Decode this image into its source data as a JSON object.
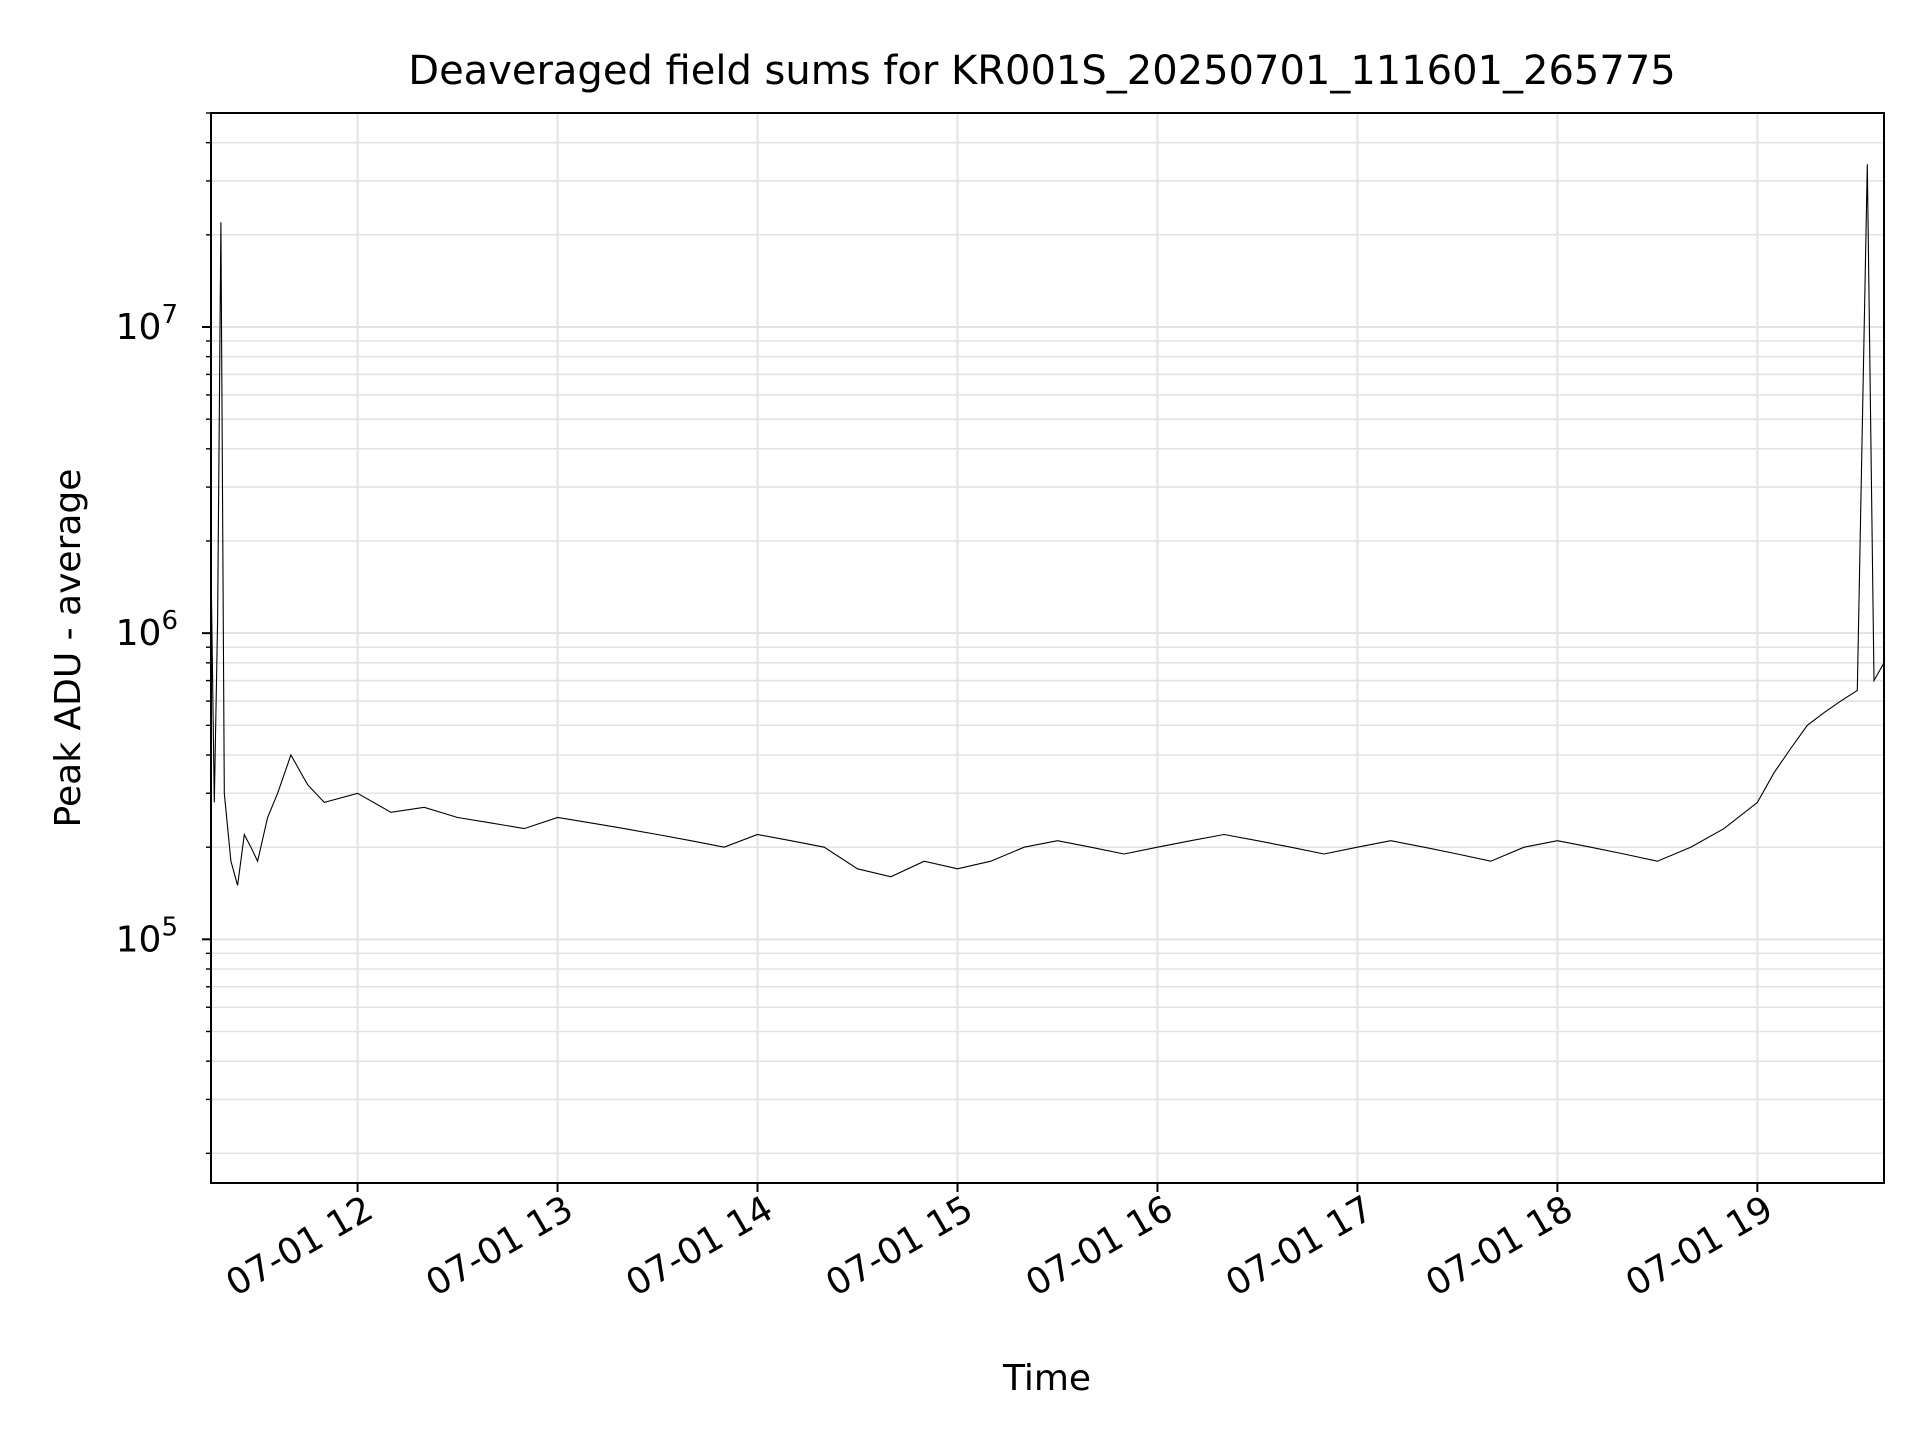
{
  "chart_data": {
    "type": "line",
    "title": "Deaveraged field sums for KR001S_20250701_111601_265775",
    "xlabel": "Time",
    "ylabel": "Peak ADU - average",
    "yscale": "log",
    "xlim": [
      "2025-07-01 11:16:01",
      "2025-07-01 19:38:00"
    ],
    "ylim": [
      16000,
      50000000
    ],
    "x_ticks": [
      {
        "value": "2025-07-01 12:00",
        "label": "07-01 12"
      },
      {
        "value": "2025-07-01 13:00",
        "label": "07-01 13"
      },
      {
        "value": "2025-07-01 14:00",
        "label": "07-01 14"
      },
      {
        "value": "2025-07-01 15:00",
        "label": "07-01 15"
      },
      {
        "value": "2025-07-01 16:00",
        "label": "07-01 16"
      },
      {
        "value": "2025-07-01 17:00",
        "label": "07-01 17"
      },
      {
        "value": "2025-07-01 18:00",
        "label": "07-01 18"
      },
      {
        "value": "2025-07-01 19:00",
        "label": "07-01 19"
      }
    ],
    "y_ticks": [
      {
        "value": 100000,
        "base": "10",
        "exp": "5"
      },
      {
        "value": 1000000,
        "base": "10",
        "exp": "6"
      },
      {
        "value": 10000000,
        "base": "10",
        "exp": "7"
      }
    ],
    "grid": true,
    "line_color": "#000000",
    "series": [
      {
        "x": [
          "2025-07-01 11:16",
          "2025-07-01 11:17",
          "2025-07-01 11:18",
          "2025-07-01 11:19",
          "2025-07-01 11:20",
          "2025-07-01 11:22",
          "2025-07-01 11:24",
          "2025-07-01 11:26",
          "2025-07-01 11:28",
          "2025-07-01 11:30",
          "2025-07-01 11:33",
          "2025-07-01 11:36",
          "2025-07-01 11:40",
          "2025-07-01 11:45",
          "2025-07-01 11:50",
          "2025-07-01 12:00",
          "2025-07-01 12:10",
          "2025-07-01 12:20",
          "2025-07-01 12:30",
          "2025-07-01 12:40",
          "2025-07-01 12:50",
          "2025-07-01 13:00",
          "2025-07-01 13:10",
          "2025-07-01 13:20",
          "2025-07-01 13:30",
          "2025-07-01 13:40",
          "2025-07-01 13:50",
          "2025-07-01 14:00",
          "2025-07-01 14:10",
          "2025-07-01 14:20",
          "2025-07-01 14:30",
          "2025-07-01 14:40",
          "2025-07-01 14:50",
          "2025-07-01 15:00",
          "2025-07-01 15:10",
          "2025-07-01 15:20",
          "2025-07-01 15:30",
          "2025-07-01 15:40",
          "2025-07-01 15:50",
          "2025-07-01 16:00",
          "2025-07-01 16:10",
          "2025-07-01 16:20",
          "2025-07-01 16:30",
          "2025-07-01 16:40",
          "2025-07-01 16:50",
          "2025-07-01 17:00",
          "2025-07-01 17:10",
          "2025-07-01 17:20",
          "2025-07-01 17:30",
          "2025-07-01 17:40",
          "2025-07-01 17:50",
          "2025-07-01 18:00",
          "2025-07-01 18:10",
          "2025-07-01 18:20",
          "2025-07-01 18:30",
          "2025-07-01 18:40",
          "2025-07-01 18:50",
          "2025-07-01 19:00",
          "2025-07-01 19:05",
          "2025-07-01 19:10",
          "2025-07-01 19:15",
          "2025-07-01 19:20",
          "2025-07-01 19:25",
          "2025-07-01 19:30",
          "2025-07-01 19:33",
          "2025-07-01 19:35",
          "2025-07-01 19:38"
        ],
        "y": [
          1800000,
          280000,
          1100000,
          22000000,
          300000,
          180000,
          150000,
          220000,
          200000,
          180000,
          250000,
          300000,
          400000,
          320000,
          280000,
          300000,
          260000,
          270000,
          250000,
          240000,
          230000,
          250000,
          240000,
          230000,
          220000,
          210000,
          200000,
          220000,
          210000,
          200000,
          170000,
          160000,
          180000,
          170000,
          180000,
          200000,
          210000,
          200000,
          190000,
          200000,
          210000,
          220000,
          210000,
          200000,
          190000,
          200000,
          210000,
          200000,
          190000,
          180000,
          200000,
          210000,
          200000,
          190000,
          180000,
          200000,
          230000,
          280000,
          350000,
          420000,
          500000,
          550000,
          600000,
          650000,
          34000000,
          700000,
          800000
        ]
      }
    ]
  }
}
